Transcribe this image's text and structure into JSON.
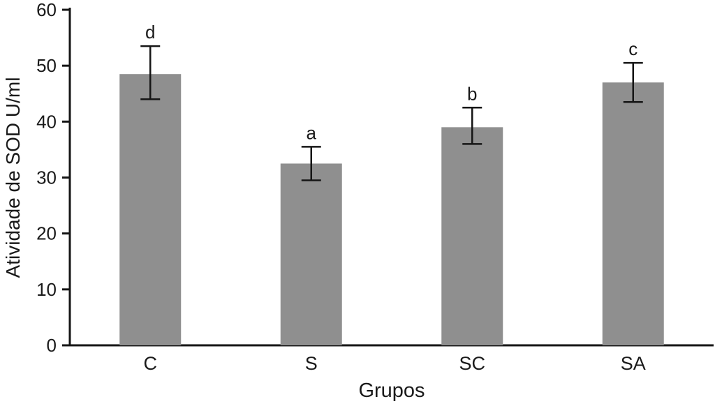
{
  "chart_data": {
    "type": "bar",
    "title": "",
    "xlabel": "Grupos",
    "ylabel": "Atividade de SOD U/ml",
    "categories": [
      "C",
      "S",
      "SC",
      "SA"
    ],
    "values": [
      48.5,
      32.5,
      39,
      47
    ],
    "error_low": [
      44,
      29.5,
      36,
      43.5
    ],
    "error_high": [
      53.5,
      35.5,
      42.5,
      50.5
    ],
    "sig_letters": [
      "d",
      "a",
      "b",
      "c"
    ],
    "ylim": [
      0,
      60
    ],
    "yticks": [
      0,
      10,
      20,
      30,
      40,
      50,
      60
    ],
    "grid": false,
    "legend": false,
    "bar_color": "#8f8f8f",
    "axis_color": "#151515"
  }
}
